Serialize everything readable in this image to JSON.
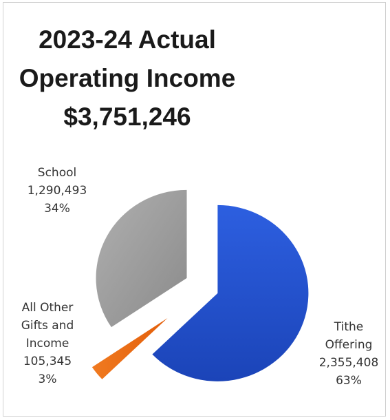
{
  "chart_data": {
    "type": "pie",
    "title_lines": [
      "2023-24 Actual",
      "Operating Income",
      "$3,751,246"
    ],
    "slices": [
      {
        "name": "Tithe Offering",
        "value": 2355408,
        "value_label": "2,355,408",
        "percent_label": "63%",
        "color": "#1f4fd1"
      },
      {
        "name": "All Other Gifts and Income",
        "value": 105345,
        "value_label": "105,345",
        "percent_label": "3%",
        "color": "#ee6a12"
      },
      {
        "name": "School",
        "value": 1290493,
        "value_label": "1,290,493",
        "percent_label": "34%",
        "color": "#9a9a9a"
      }
    ],
    "exploded": true,
    "legend": "none"
  },
  "labels": {
    "tithe": [
      "Tithe",
      "Offering",
      "2,355,408",
      "63%"
    ],
    "other": [
      "All Other",
      "Gifts and",
      "Income",
      "105,345",
      "3%"
    ],
    "school": [
      "School",
      "1,290,493",
      "34%"
    ]
  }
}
